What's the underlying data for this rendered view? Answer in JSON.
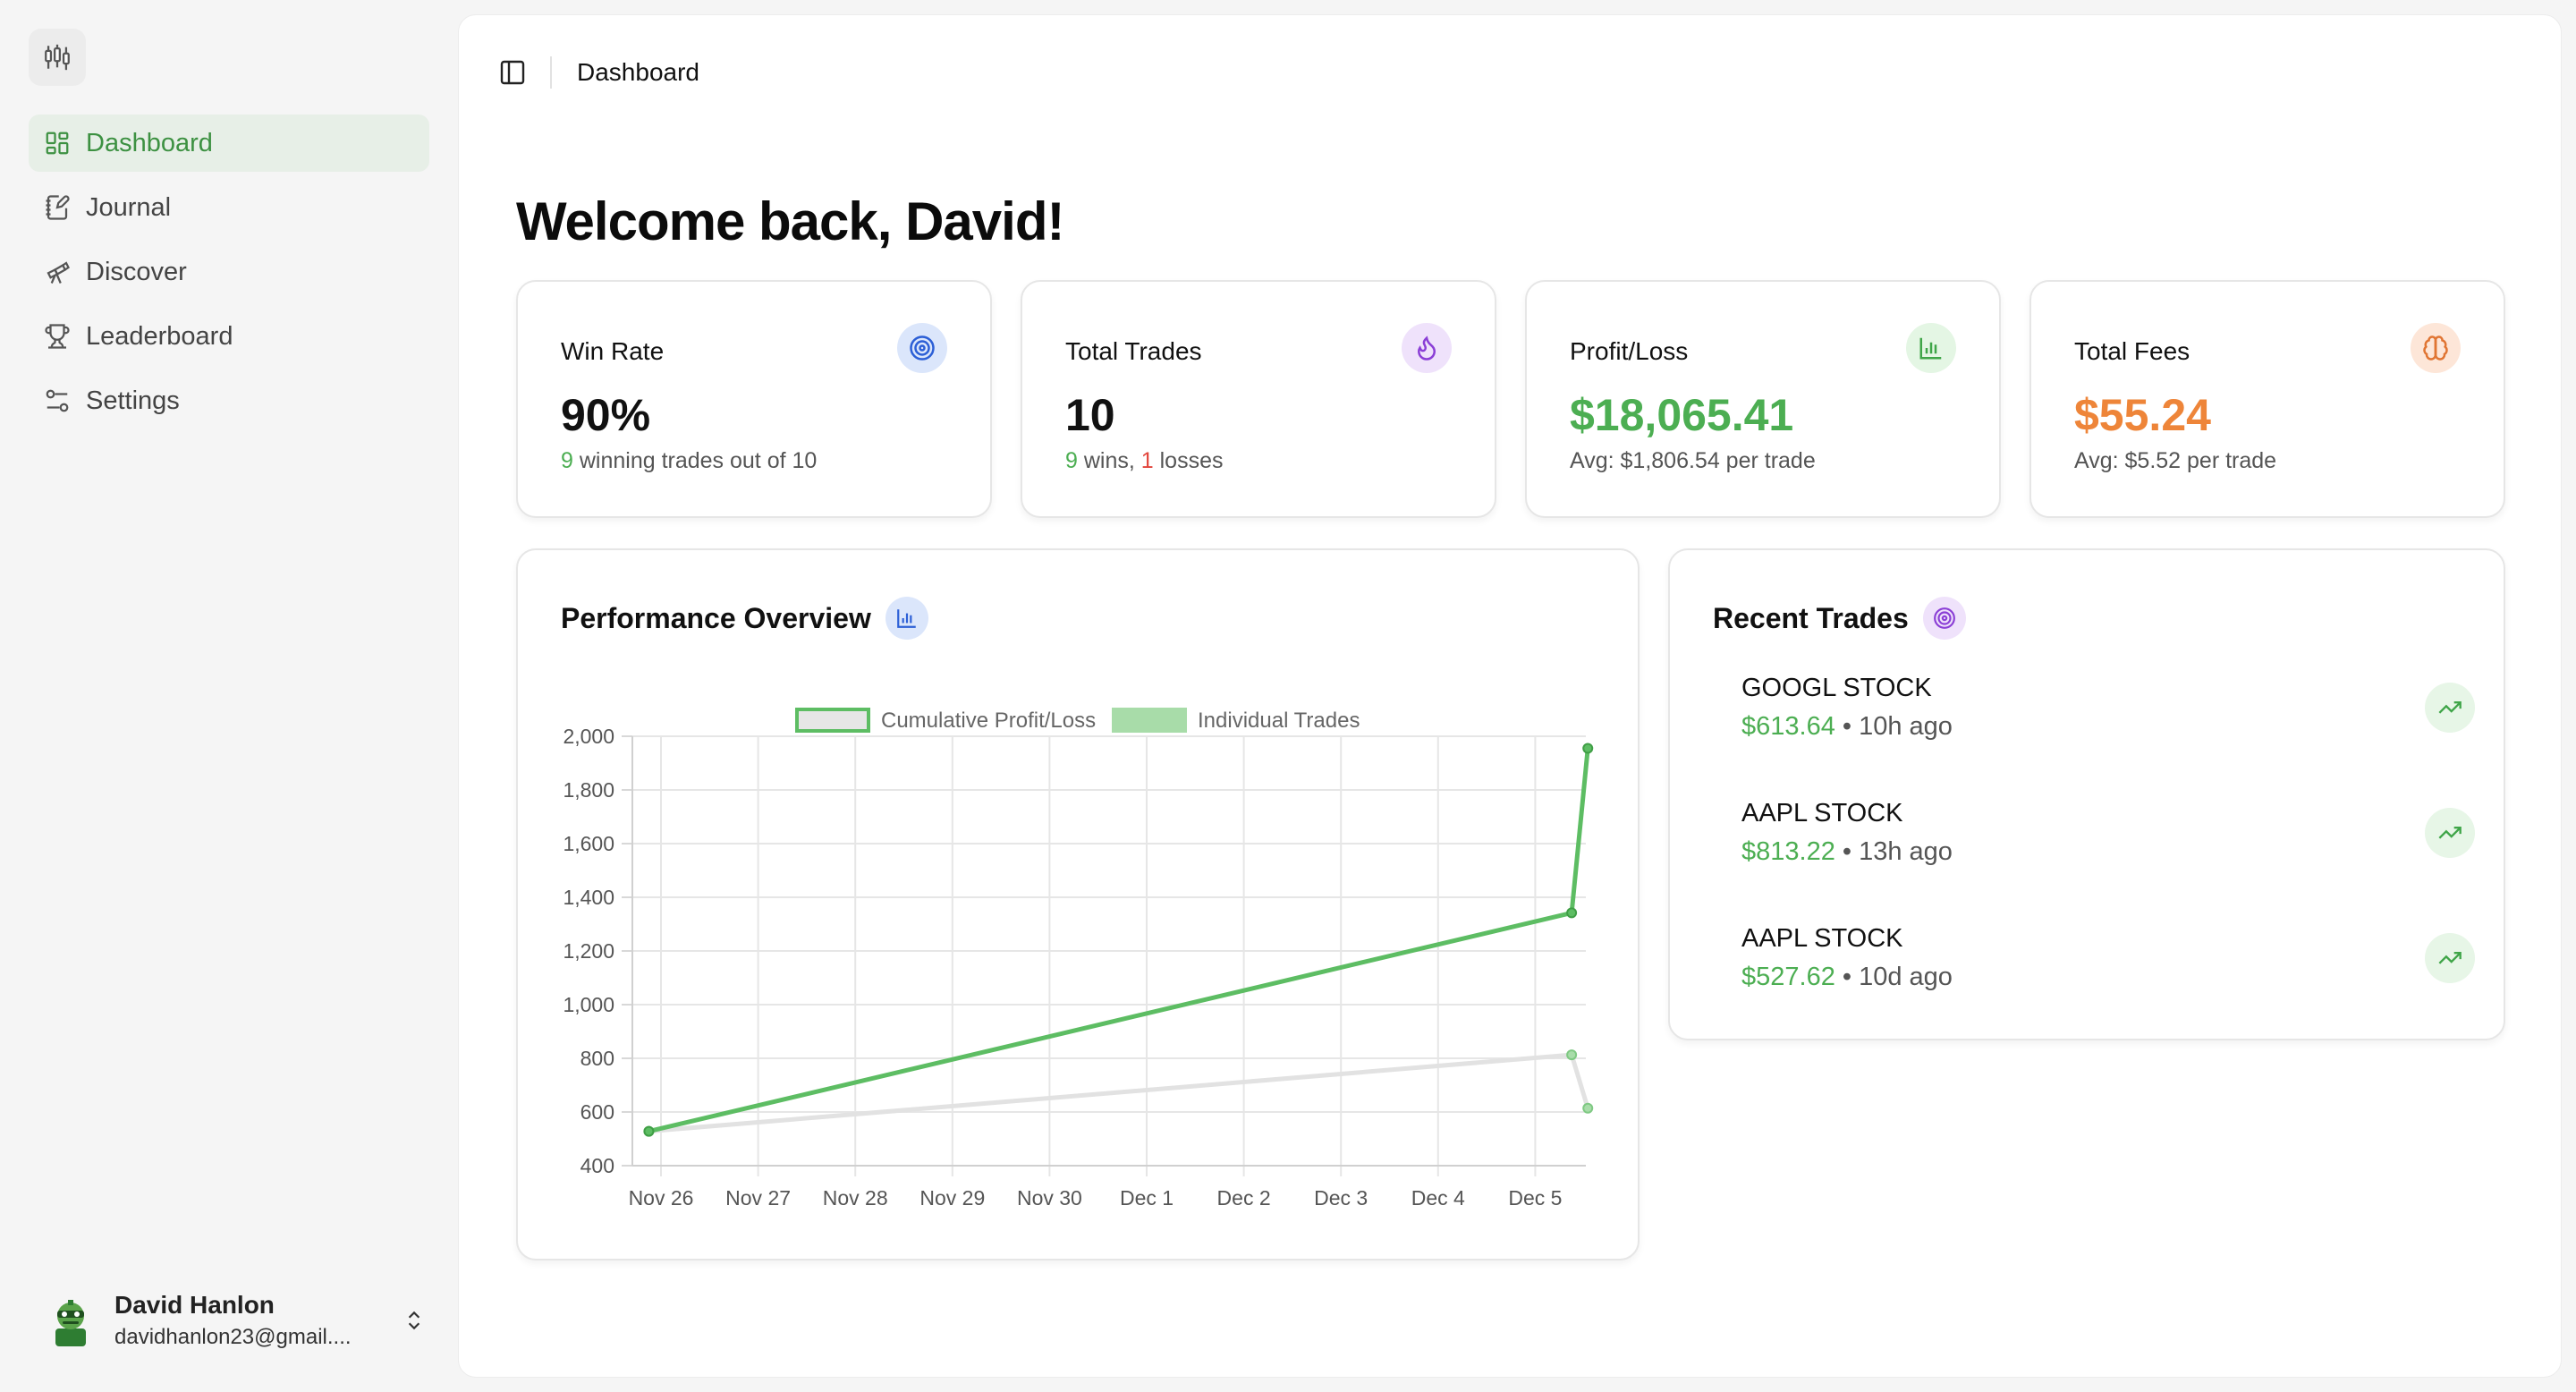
{
  "app": {
    "nav": [
      {
        "label": "Dashboard",
        "icon": "layout-dashboard-icon",
        "active": true
      },
      {
        "label": "Journal",
        "icon": "notebook-pen-icon",
        "active": false
      },
      {
        "label": "Discover",
        "icon": "telescope-icon",
        "active": false
      },
      {
        "label": "Leaderboard",
        "icon": "trophy-icon",
        "active": false
      },
      {
        "label": "Settings",
        "icon": "sliders-icon",
        "active": false
      }
    ],
    "user": {
      "name": "David Hanlon",
      "email": "davidhanlon23@gmail...."
    }
  },
  "header": {
    "breadcrumb": "Dashboard"
  },
  "welcome": "Welcome back, David!",
  "stats": {
    "win_rate": {
      "label": "Win Rate",
      "value": "90%",
      "sub_a": "9",
      "sub_b": " winning trades out of 10",
      "icon": "target-icon",
      "icon_bg": "#dbe6fb",
      "icon_color": "#2c5fd6"
    },
    "total_trades": {
      "label": "Total Trades",
      "value": "10",
      "wins": "9",
      "wins_text": " wins, ",
      "losses": "1",
      "losses_text": " losses",
      "icon": "flame-icon",
      "icon_bg": "#efe2fb",
      "icon_color": "#8b3fd6"
    },
    "profit_loss": {
      "label": "Profit/Loss",
      "value": "$18,065.41",
      "sub": "Avg: $1,806.54 per trade",
      "icon": "bar-chart-icon",
      "icon_bg": "#e4f6e4",
      "icon_color": "#3fa548",
      "value_color": "#4cae52"
    },
    "total_fees": {
      "label": "Total Fees",
      "value": "$55.24",
      "sub": "Avg: $5.52 per trade",
      "icon": "brain-icon",
      "icon_bg": "#fde6d8",
      "icon_color": "#e07533",
      "value_color": "#ee8539"
    }
  },
  "performance": {
    "title": "Performance Overview",
    "icon": "bar-chart-icon"
  },
  "chart_data": {
    "type": "line",
    "categories": [
      "Nov 26",
      "Nov 27",
      "Nov 28",
      "Nov 29",
      "Nov 30",
      "Dec 1",
      "Dec 2",
      "Dec 3",
      "Dec 4",
      "Dec 5"
    ],
    "ylim": [
      400,
      2000
    ],
    "yticks": [
      "2,000",
      "1,800",
      "1,600",
      "1,400",
      "1,200",
      "1,000",
      "800",
      "600",
      "400"
    ],
    "grid": true,
    "legend_position": "top",
    "series": [
      {
        "name": "Cumulative Profit/Loss",
        "color": "#5dbd63",
        "points": [
          {
            "x": "Nov 25 21:00",
            "y": 528
          },
          {
            "x": "Dec 5 09:00",
            "y": 1342
          },
          {
            "x": "Dec 5 13:00",
            "y": 1955
          }
        ]
      },
      {
        "name": "Individual Trades",
        "color": "#e2e2e2",
        "points": [
          {
            "x": "Nov 25 21:00",
            "y": 528
          },
          {
            "x": "Dec 5 09:00",
            "y": 813
          },
          {
            "x": "Dec 5 13:00",
            "y": 614
          }
        ]
      }
    ]
  },
  "recent": {
    "title": "Recent Trades",
    "icon": "target-icon",
    "items": [
      {
        "symbol": "GOOGL STOCK",
        "amount": "$613.64",
        "time": " • 10h ago"
      },
      {
        "symbol": "AAPL STOCK",
        "amount": "$813.22",
        "time": " • 13h ago"
      },
      {
        "symbol": "AAPL STOCK",
        "amount": "$527.62",
        "time": " • 10d ago"
      }
    ]
  }
}
